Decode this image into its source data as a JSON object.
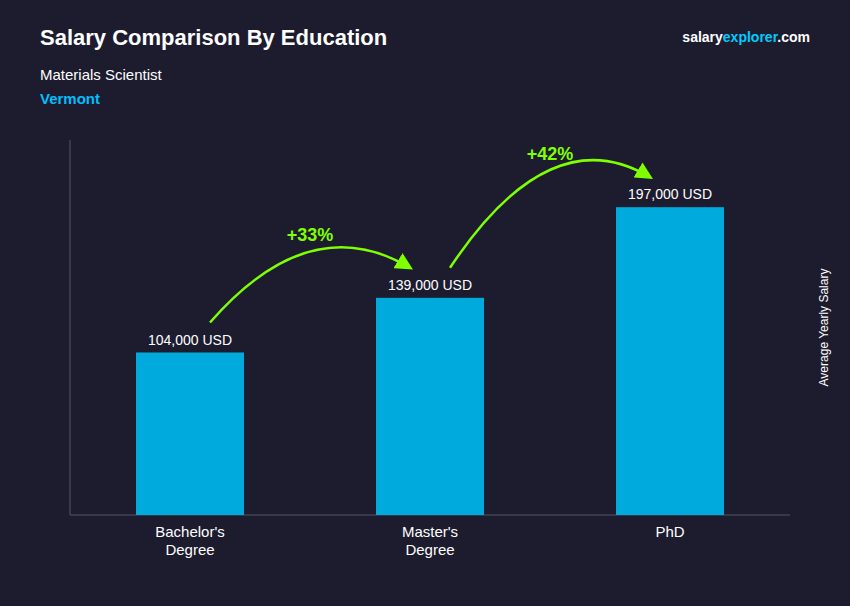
{
  "chart_data": {
    "type": "bar",
    "title": "Salary Comparison By Education",
    "subtitle": "Materials Scientist",
    "location": "Vermont",
    "site_text": [
      "salary",
      "explorer",
      ".com"
    ],
    "y_label": "Average Yearly Salary",
    "categories": [
      "Bachelor's\nDegree",
      "Master's\nDegree",
      "PhD"
    ],
    "values": [
      104000,
      139000,
      197000
    ],
    "value_labels": [
      "104,000 USD",
      "139,000 USD",
      "197,000 USD"
    ],
    "data_labels": true,
    "annotations": [
      "+33%",
      "+42%"
    ],
    "color": "#00AADD",
    "ylim": [
      0,
      240000
    ],
    "grid": false,
    "tick_labels": "x"
  }
}
